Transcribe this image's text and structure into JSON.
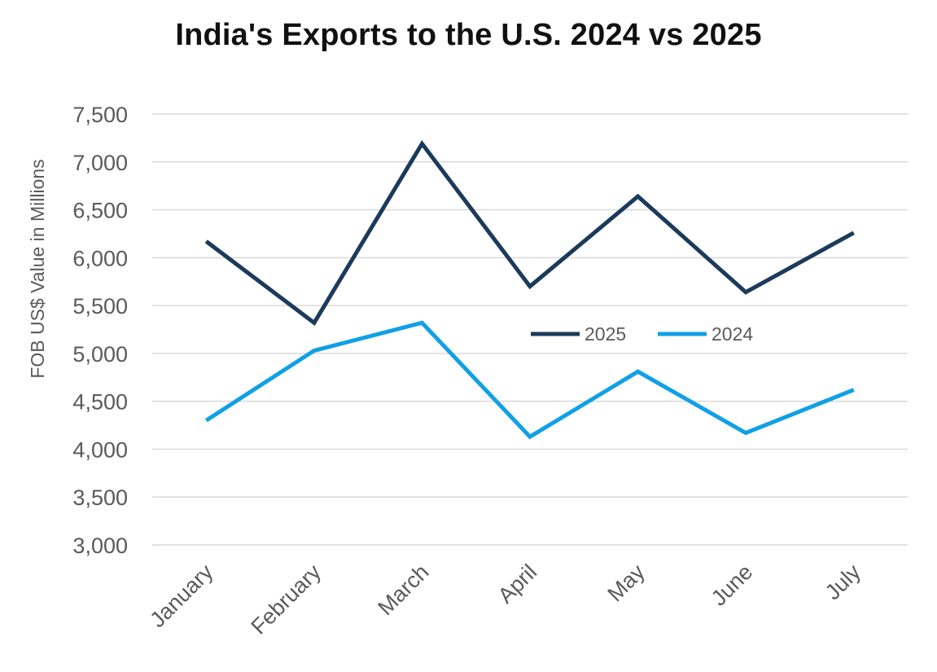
{
  "chart_data": {
    "type": "line",
    "title": "India's Exports to the U.S. 2024 vs 2025",
    "xlabel": "",
    "ylabel": "FOB US$ Value in Millions",
    "categories": [
      "January",
      "February",
      "March",
      "April",
      "May",
      "June",
      "July"
    ],
    "series": [
      {
        "name": "2025",
        "color": "#1b3a5c",
        "values": [
          6170,
          5320,
          7190,
          5700,
          6640,
          5640,
          6260
        ]
      },
      {
        "name": "2024",
        "color": "#10a0e6",
        "values": [
          4300,
          5030,
          5320,
          4130,
          4810,
          4170,
          4620
        ]
      }
    ],
    "ylim": [
      3000,
      7500
    ],
    "yticks": [
      "3,000",
      "3,500",
      "4,000",
      "4,500",
      "5,000",
      "5,500",
      "6,000",
      "6,500",
      "7,000",
      "7,500"
    ],
    "ytick_values": [
      3000,
      3500,
      4000,
      4500,
      5000,
      5500,
      6000,
      6500,
      7000,
      7500
    ],
    "grid": "horizontal",
    "legend_position": "center-right"
  }
}
